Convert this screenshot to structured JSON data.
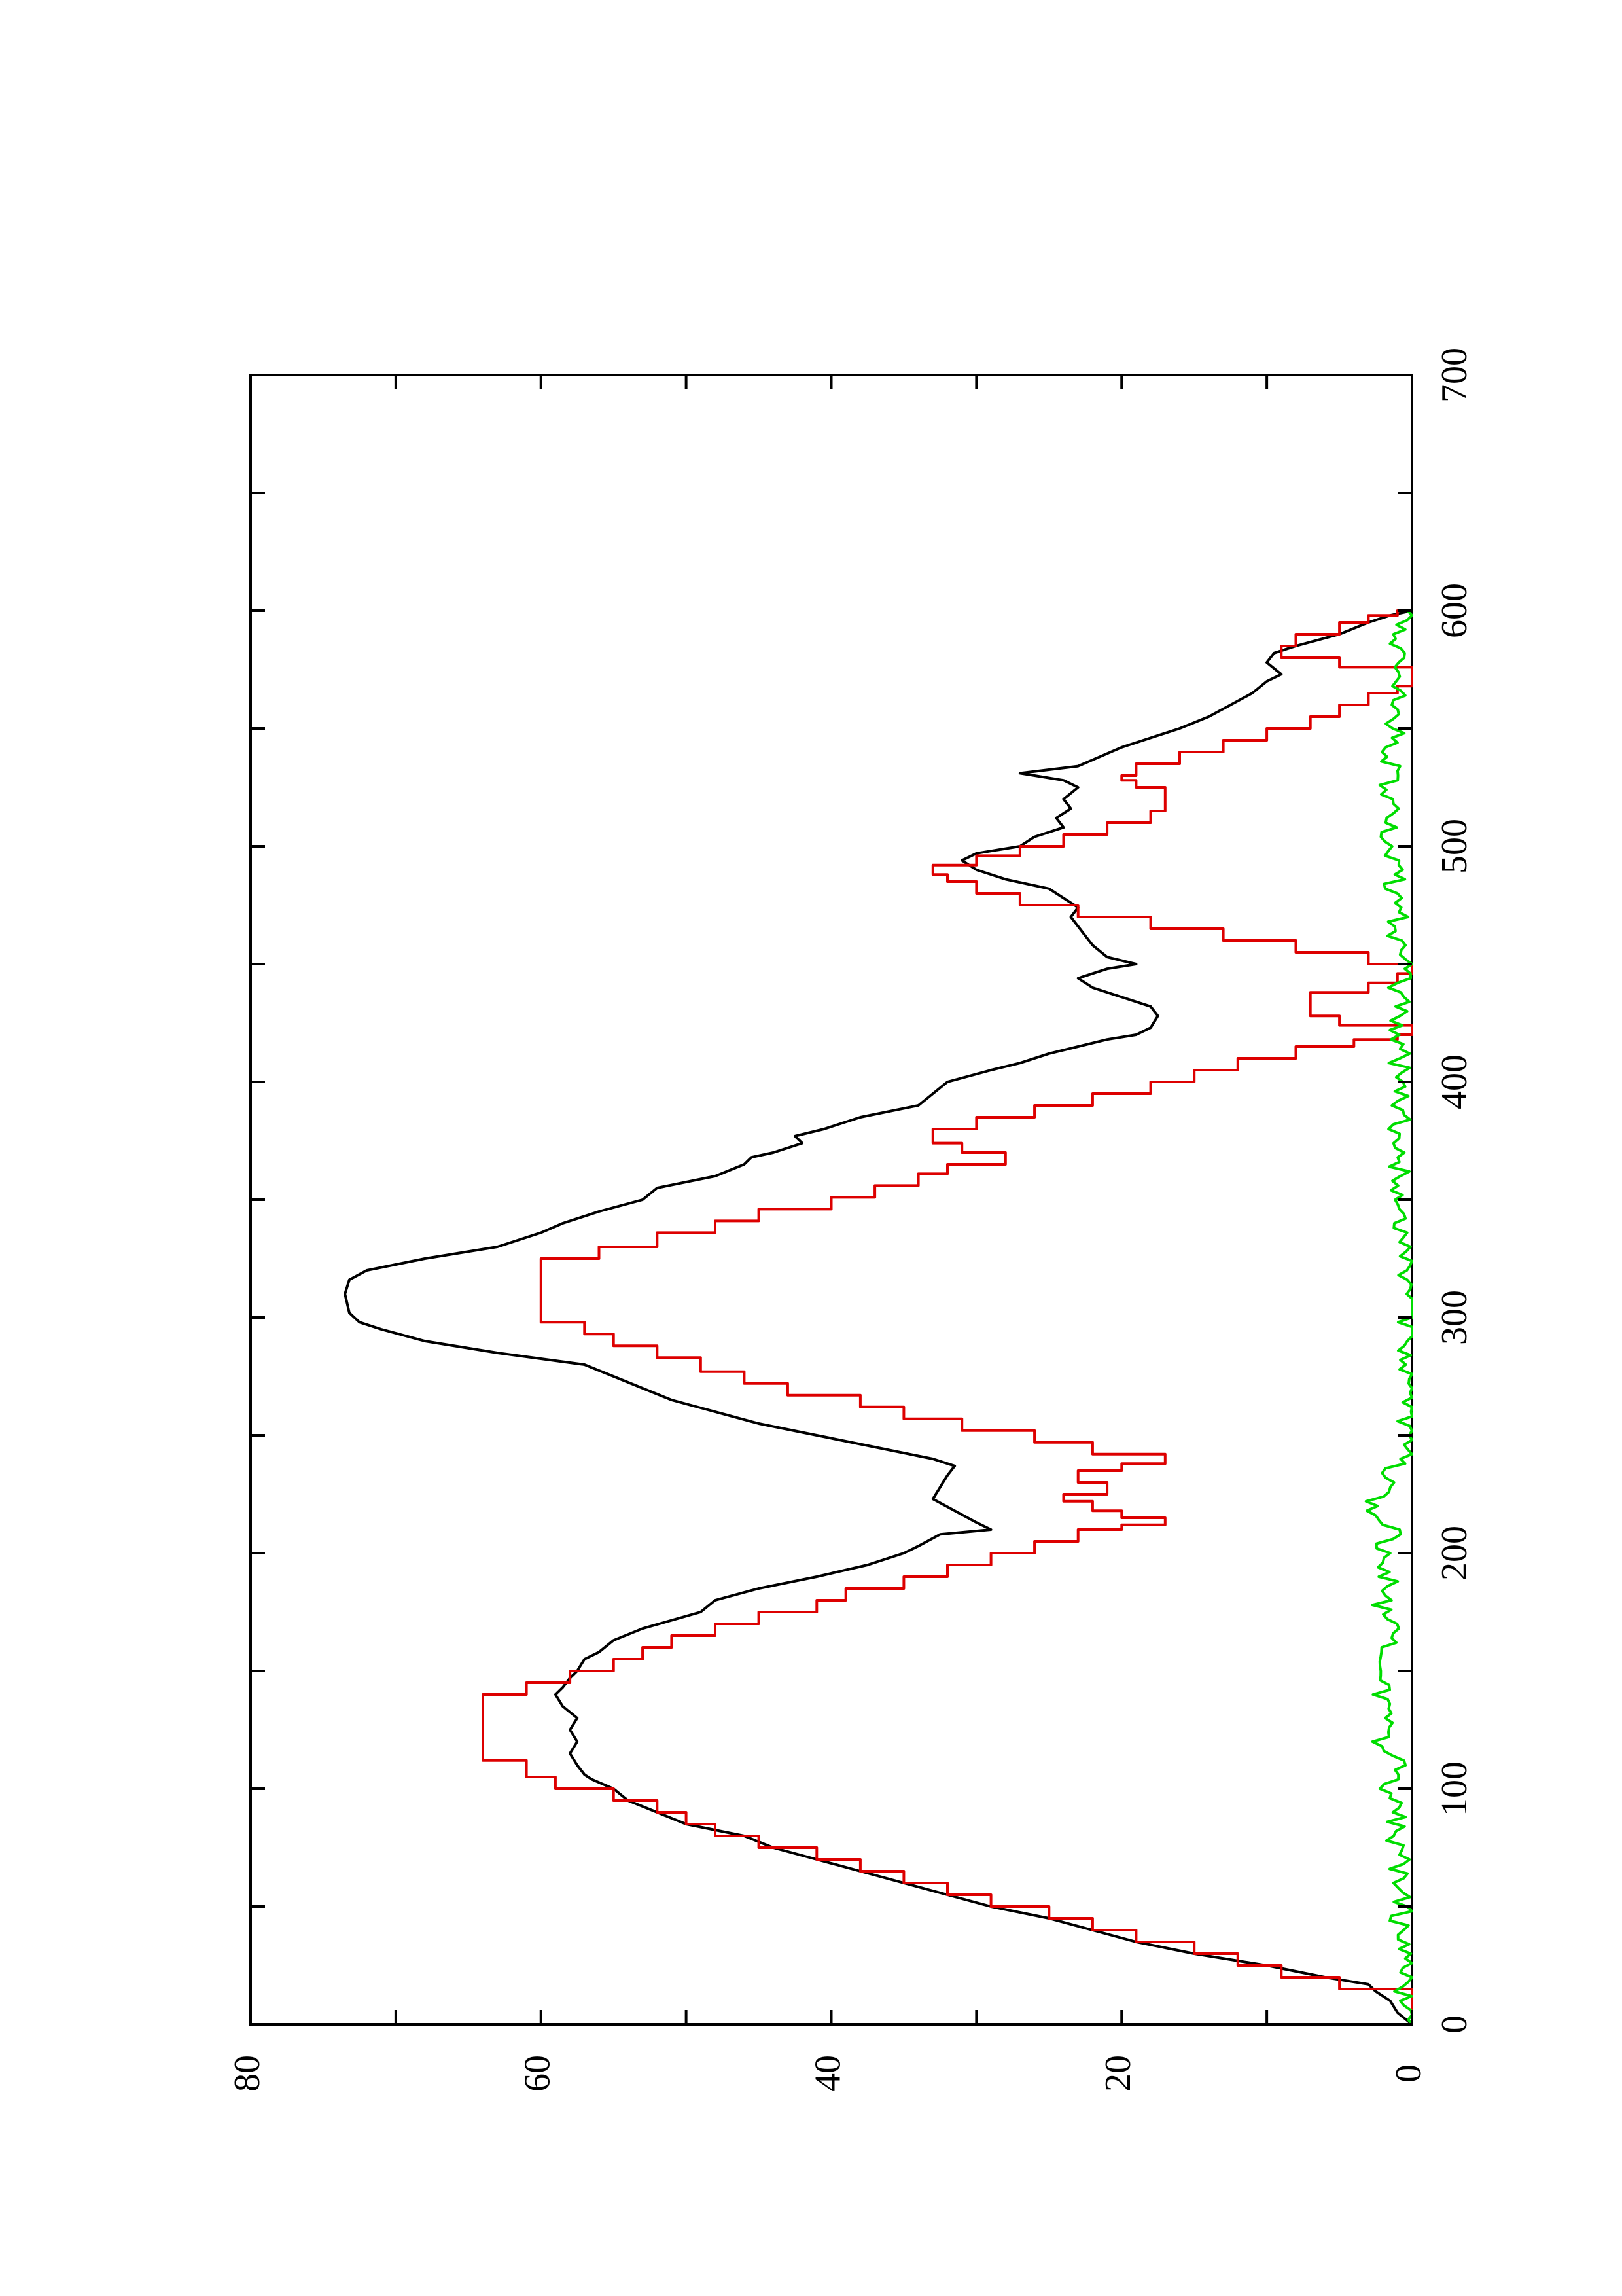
{
  "chart_data": {
    "type": "line",
    "orientation": "rotated-90",
    "title": "",
    "xlabel": "",
    "ylabel": "",
    "xlim": [
      0,
      700
    ],
    "ylim": [
      0,
      80
    ],
    "x_ticks": [
      0,
      100,
      200,
      300,
      400,
      500,
      600,
      700
    ],
    "y_ticks": [
      0,
      20,
      40,
      60,
      80
    ],
    "x_tick_labels": [
      "0",
      "100",
      "200",
      "300",
      "400",
      "500",
      "600",
      "700"
    ],
    "y_tick_labels": [
      "0",
      "20",
      "40",
      "60",
      "80"
    ],
    "grid": false,
    "series": [
      {
        "color": "#000000",
        "style": "line",
        "points": [
          [
            0,
            0
          ],
          [
            5,
            1
          ],
          [
            10,
            1.5
          ],
          [
            14,
            2.5
          ],
          [
            17,
            3
          ],
          [
            20,
            6
          ],
          [
            25,
            10
          ],
          [
            30,
            15
          ],
          [
            35,
            19
          ],
          [
            40,
            22
          ],
          [
            45,
            25
          ],
          [
            50,
            29
          ],
          [
            55,
            32
          ],
          [
            60,
            35
          ],
          [
            65,
            38
          ],
          [
            70,
            41
          ],
          [
            75,
            44
          ],
          [
            80,
            46
          ],
          [
            85,
            50
          ],
          [
            90,
            52
          ],
          [
            95,
            54
          ],
          [
            100,
            55
          ],
          [
            104,
            56.5
          ],
          [
            106,
            57
          ],
          [
            110,
            57.5
          ],
          [
            115,
            58
          ],
          [
            120,
            57.5
          ],
          [
            125,
            58
          ],
          [
            130,
            57.5
          ],
          [
            135,
            58.5
          ],
          [
            140,
            59
          ],
          [
            143,
            58.5
          ],
          [
            147,
            58
          ],
          [
            150,
            57.5
          ],
          [
            155,
            57
          ],
          [
            158,
            56
          ],
          [
            163,
            55
          ],
          [
            168,
            53
          ],
          [
            175,
            49
          ],
          [
            180,
            48
          ],
          [
            185,
            45
          ],
          [
            190,
            41
          ],
          [
            195,
            37.5
          ],
          [
            200,
            35
          ],
          [
            203,
            34
          ],
          [
            208,
            32.5
          ],
          [
            210,
            29
          ],
          [
            213,
            30
          ],
          [
            218,
            31.5
          ],
          [
            223,
            33
          ],
          [
            228,
            32.5
          ],
          [
            233,
            32
          ],
          [
            237,
            31.5
          ],
          [
            240,
            33
          ],
          [
            245,
            37
          ],
          [
            250,
            41
          ],
          [
            255,
            45
          ],
          [
            260,
            48
          ],
          [
            265,
            51
          ],
          [
            270,
            53
          ],
          [
            275,
            55
          ],
          [
            280,
            57
          ],
          [
            285,
            63
          ],
          [
            290,
            68
          ],
          [
            295,
            71
          ],
          [
            298,
            72.5
          ],
          [
            302,
            73.2
          ],
          [
            310,
            73.5
          ],
          [
            316,
            73.2
          ],
          [
            320,
            72
          ],
          [
            325,
            68
          ],
          [
            330,
            63
          ],
          [
            336,
            60
          ],
          [
            340,
            58.5
          ],
          [
            345,
            56
          ],
          [
            350,
            53
          ],
          [
            355,
            52
          ],
          [
            360,
            48
          ],
          [
            365,
            46
          ],
          [
            368,
            45.5
          ],
          [
            370,
            44
          ],
          [
            374,
            42
          ],
          [
            377,
            42.5
          ],
          [
            380,
            40.5
          ],
          [
            385,
            38
          ],
          [
            390,
            34
          ],
          [
            395,
            33
          ],
          [
            400,
            32
          ],
          [
            405,
            29
          ],
          [
            408,
            27
          ],
          [
            412,
            25
          ],
          [
            415,
            23
          ],
          [
            418,
            21
          ],
          [
            420,
            19
          ],
          [
            423,
            18
          ],
          [
            428,
            17.5
          ],
          [
            432,
            18
          ],
          [
            436,
            20
          ],
          [
            440,
            22
          ],
          [
            444,
            23
          ],
          [
            448,
            21
          ],
          [
            450,
            19
          ],
          [
            453,
            21
          ],
          [
            458,
            22
          ],
          [
            462,
            22.5
          ],
          [
            466,
            23
          ],
          [
            470,
            23.5
          ],
          [
            474,
            23
          ],
          [
            478,
            24
          ],
          [
            482,
            25
          ],
          [
            486,
            28
          ],
          [
            490,
            30
          ],
          [
            494,
            31
          ],
          [
            497,
            30
          ],
          [
            500,
            27
          ],
          [
            504,
            26
          ],
          [
            508,
            24
          ],
          [
            512,
            24.5
          ],
          [
            516,
            23.5
          ],
          [
            520,
            24
          ],
          [
            525,
            23
          ],
          [
            528,
            24
          ],
          [
            531,
            27
          ],
          [
            534,
            23
          ],
          [
            538,
            21.5
          ],
          [
            542,
            20
          ],
          [
            546,
            18
          ],
          [
            550,
            16
          ],
          [
            555,
            14
          ],
          [
            560,
            12.5
          ],
          [
            565,
            11
          ],
          [
            570,
            10
          ],
          [
            573,
            9
          ],
          [
            578,
            10
          ],
          [
            582,
            9.5
          ],
          [
            585,
            8
          ],
          [
            590,
            5
          ],
          [
            595,
            3
          ],
          [
            598,
            1.5
          ],
          [
            600,
            0
          ]
        ]
      },
      {
        "color": "#dd0000",
        "style": "step",
        "points": [
          [
            0,
            0
          ],
          [
            5,
            0
          ],
          [
            10,
            0
          ],
          [
            15,
            5
          ],
          [
            20,
            9
          ],
          [
            25,
            12
          ],
          [
            30,
            15
          ],
          [
            35,
            19
          ],
          [
            40,
            22
          ],
          [
            45,
            25
          ],
          [
            50,
            29
          ],
          [
            55,
            32
          ],
          [
            60,
            35
          ],
          [
            65,
            38
          ],
          [
            70,
            41
          ],
          [
            75,
            45
          ],
          [
            80,
            48
          ],
          [
            85,
            50
          ],
          [
            90,
            52
          ],
          [
            95,
            55
          ],
          [
            100,
            59
          ],
          [
            105,
            61
          ],
          [
            112,
            64
          ],
          [
            120,
            64
          ],
          [
            130,
            64
          ],
          [
            137,
            64
          ],
          [
            140,
            61
          ],
          [
            145,
            58
          ],
          [
            150,
            55
          ],
          [
            155,
            53
          ],
          [
            160,
            51
          ],
          [
            165,
            48
          ],
          [
            170,
            45
          ],
          [
            175,
            41
          ],
          [
            180,
            39
          ],
          [
            185,
            35
          ],
          [
            190,
            32
          ],
          [
            195,
            29
          ],
          [
            200,
            26
          ],
          [
            205,
            23
          ],
          [
            210,
            20
          ],
          [
            212,
            17
          ],
          [
            215,
            20
          ],
          [
            218,
            22
          ],
          [
            222,
            24
          ],
          [
            225,
            21
          ],
          [
            230,
            23
          ],
          [
            235,
            20
          ],
          [
            238,
            17
          ],
          [
            242,
            22
          ],
          [
            247,
            26
          ],
          [
            252,
            31
          ],
          [
            257,
            35
          ],
          [
            262,
            38
          ],
          [
            267,
            43
          ],
          [
            272,
            46
          ],
          [
            277,
            49
          ],
          [
            283,
            52
          ],
          [
            288,
            55
          ],
          [
            293,
            57
          ],
          [
            298,
            60
          ],
          [
            310,
            60
          ],
          [
            320,
            60
          ],
          [
            325,
            56
          ],
          [
            330,
            52
          ],
          [
            336,
            48
          ],
          [
            341,
            45
          ],
          [
            346,
            40
          ],
          [
            351,
            37
          ],
          [
            356,
            34
          ],
          [
            361,
            32
          ],
          [
            365,
            28
          ],
          [
            370,
            31
          ],
          [
            374,
            33
          ],
          [
            380,
            30
          ],
          [
            385,
            26
          ],
          [
            390,
            22
          ],
          [
            395,
            18
          ],
          [
            400,
            15
          ],
          [
            405,
            12
          ],
          [
            410,
            8
          ],
          [
            415,
            4
          ],
          [
            418,
            1
          ],
          [
            420,
            0
          ],
          [
            424,
            5
          ],
          [
            428,
            7
          ],
          [
            433,
            7
          ],
          [
            438,
            3
          ],
          [
            442,
            1
          ],
          [
            446,
            0
          ],
          [
            450,
            3
          ],
          [
            455,
            8
          ],
          [
            460,
            13
          ],
          [
            465,
            18
          ],
          [
            470,
            23
          ],
          [
            475,
            27
          ],
          [
            480,
            30
          ],
          [
            485,
            32
          ],
          [
            488,
            33
          ],
          [
            492,
            30
          ],
          [
            496,
            27
          ],
          [
            500,
            24
          ],
          [
            505,
            21
          ],
          [
            510,
            18
          ],
          [
            515,
            17
          ],
          [
            520,
            17
          ],
          [
            525,
            19
          ],
          [
            528,
            20
          ],
          [
            530,
            19
          ],
          [
            535,
            16
          ],
          [
            540,
            13
          ],
          [
            545,
            10
          ],
          [
            550,
            7
          ],
          [
            555,
            5
          ],
          [
            560,
            3
          ],
          [
            565,
            1
          ],
          [
            568,
            0
          ],
          [
            572,
            0
          ],
          [
            576,
            5
          ],
          [
            580,
            9
          ],
          [
            585,
            8
          ],
          [
            590,
            5
          ],
          [
            595,
            3
          ],
          [
            598,
            1
          ],
          [
            600,
            0
          ]
        ]
      },
      {
        "color": "#00dd00",
        "style": "noise",
        "points": [
          [
            0,
            0
          ],
          [
            10,
            0.8
          ],
          [
            20,
            0.3
          ],
          [
            30,
            0.5
          ],
          [
            40,
            1.1
          ],
          [
            50,
            0.4
          ],
          [
            60,
            1.0
          ],
          [
            70,
            0.6
          ],
          [
            80,
            1.5
          ],
          [
            90,
            0.7
          ],
          [
            100,
            1.8
          ],
          [
            110,
            1.1
          ],
          [
            120,
            2.0
          ],
          [
            130,
            1.3
          ],
          [
            140,
            2.3
          ],
          [
            150,
            1.4
          ],
          [
            160,
            2.0
          ],
          [
            170,
            1.2
          ],
          [
            180,
            2.2
          ],
          [
            190,
            1.5
          ],
          [
            200,
            2.1
          ],
          [
            210,
            1.4
          ],
          [
            220,
            2.8
          ],
          [
            230,
            2.0
          ],
          [
            240,
            0.8
          ],
          [
            250,
            0.4
          ],
          [
            260,
            0.6
          ],
          [
            270,
            0.2
          ],
          [
            280,
            0.5
          ],
          [
            290,
            0.1
          ],
          [
            300,
            0.4
          ],
          [
            310,
            0.2
          ],
          [
            320,
            0.3
          ],
          [
            330,
            0.1
          ],
          [
            340,
            0.6
          ],
          [
            350,
            0.5
          ],
          [
            360,
            0.9
          ],
          [
            370,
            0.7
          ],
          [
            380,
            1.0
          ],
          [
            390,
            0.6
          ],
          [
            400,
            1.1
          ],
          [
            410,
            0.8
          ],
          [
            420,
            1.3
          ],
          [
            430,
            0.5
          ],
          [
            440,
            1.0
          ],
          [
            450,
            0.4
          ],
          [
            460,
            1.4
          ],
          [
            470,
            0.9
          ],
          [
            480,
            1.6
          ],
          [
            490,
            1.0
          ],
          [
            500,
            1.8
          ],
          [
            510,
            1.1
          ],
          [
            520,
            1.9
          ],
          [
            530,
            1.2
          ],
          [
            540,
            1.6
          ],
          [
            550,
            1.0
          ],
          [
            560,
            1.3
          ],
          [
            570,
            0.7
          ],
          [
            580,
            1.2
          ],
          [
            590,
            0.6
          ],
          [
            600,
            0.3
          ]
        ]
      }
    ]
  }
}
